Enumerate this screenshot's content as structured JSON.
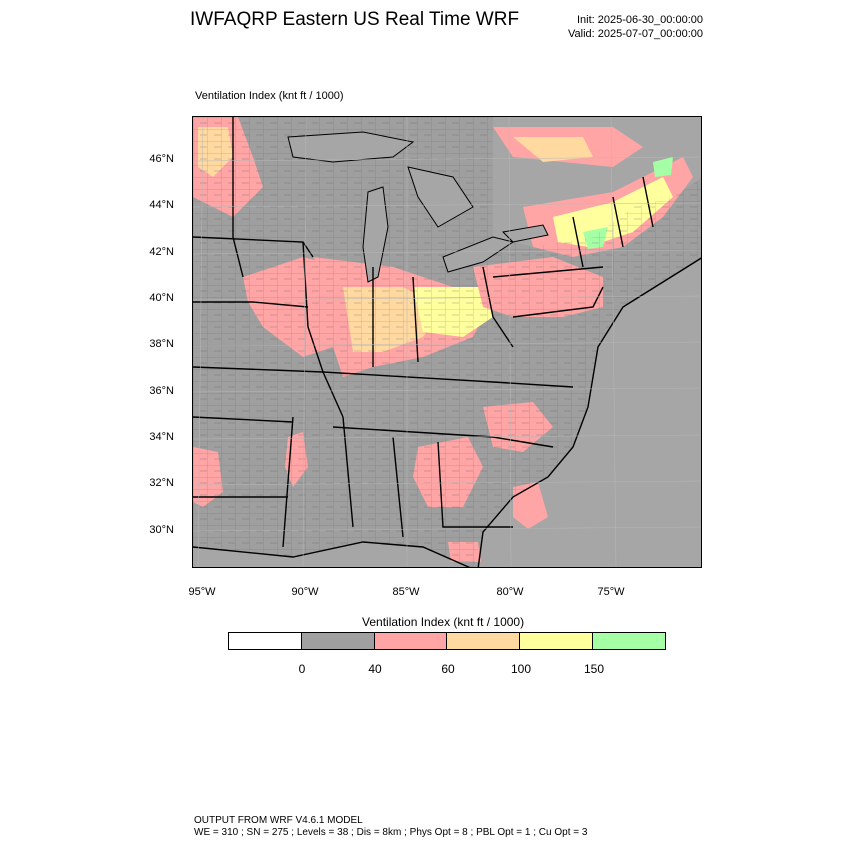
{
  "header": {
    "title": "IWFAQRP Eastern US Real Time WRF",
    "init": "Init: 2025-06-30_00:00:00",
    "valid": "Valid: 2025-07-07_00:00:00"
  },
  "map": {
    "subtitle": "Ventilation Index   (knt ft / 1000)",
    "lat_labels": [
      "46°N",
      "44°N",
      "42°N",
      "40°N",
      "38°N",
      "36°N",
      "34°N",
      "32°N",
      "30°N"
    ],
    "lon_labels": [
      "95°W",
      "90°W",
      "85°W",
      "80°W",
      "75°W"
    ],
    "land_color": "#9f9f9f",
    "water_color": "#a8a8a8"
  },
  "legend": {
    "title": "Ventilation Index  (knt ft / 1000)",
    "ticks": [
      "0",
      "40",
      "60",
      "100",
      "150"
    ],
    "colors": [
      "#ffffff",
      "#a0a0a0",
      "#ffa5a5",
      "#ffd9a0",
      "#ffff9e",
      "#a5ffa5"
    ]
  },
  "footer": {
    "line1": "OUTPUT FROM WRF V4.6.1 MODEL",
    "line2": "WE = 310 ; SN = 275 ; Levels = 38 ; Dis = 8km ; Phys Opt = 8 ; PBL Opt = 1 ; Cu Opt = 3"
  }
}
